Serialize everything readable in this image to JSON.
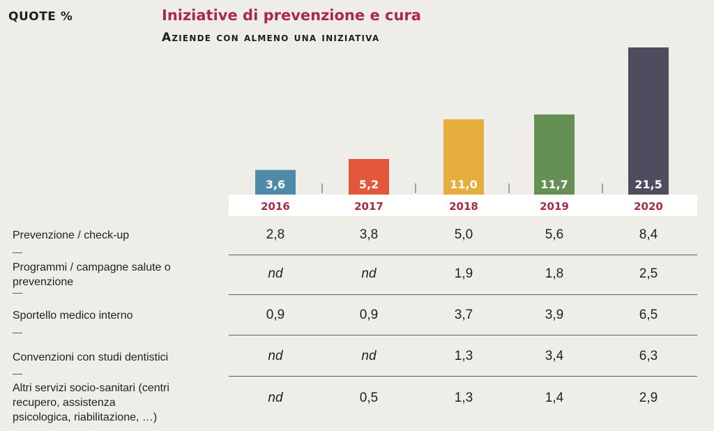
{
  "header": {
    "units_label": "QUOTE %",
    "title": "Iniziative di prevenzione e cura",
    "subtitle": "Aziende con almeno una iniziativa"
  },
  "colors": {
    "title": "#a82a4a",
    "year_labels": "#a82a4a",
    "bars": [
      "#4f8aa8",
      "#e3583c",
      "#e5ad3c",
      "#649056",
      "#4d4d5f"
    ]
  },
  "chart_data": [
    {
      "type": "bar",
      "title": "Aziende con almeno una iniziativa",
      "categories": [
        "2016",
        "2017",
        "2018",
        "2019",
        "2020"
      ],
      "values": [
        3.6,
        5.2,
        11.0,
        11.7,
        21.5
      ],
      "value_labels": [
        "3,6",
        "5,2",
        "11,0",
        "11,7",
        "21,5"
      ],
      "ylim": [
        0,
        21.5
      ],
      "grid": false,
      "legend": "none"
    },
    {
      "type": "table",
      "columns": [
        "2016",
        "2017",
        "2018",
        "2019",
        "2020"
      ],
      "rows": [
        {
          "label": "Prevenzione / check-up",
          "values": [
            "2,8",
            "3,8",
            "5,0",
            "5,6",
            "8,4"
          ]
        },
        {
          "label": "Programmi / campagne salute o prevenzione",
          "values": [
            "nd",
            "nd",
            "1,9",
            "1,8",
            "2,5"
          ]
        },
        {
          "label": "Sportello medico interno",
          "values": [
            "0,9",
            "0,9",
            "3,7",
            "3,9",
            "6,5"
          ]
        },
        {
          "label": "Convenzioni con studi dentistici",
          "values": [
            "nd",
            "nd",
            "1,3",
            "3,4",
            "6,3"
          ]
        },
        {
          "label": "Altri servizi socio-sanitari (centri recupero, assistenza psicologica, riabilitazione, …)",
          "values": [
            "nd",
            "0,5",
            "1,3",
            "1,4",
            "2,9"
          ]
        }
      ]
    }
  ]
}
